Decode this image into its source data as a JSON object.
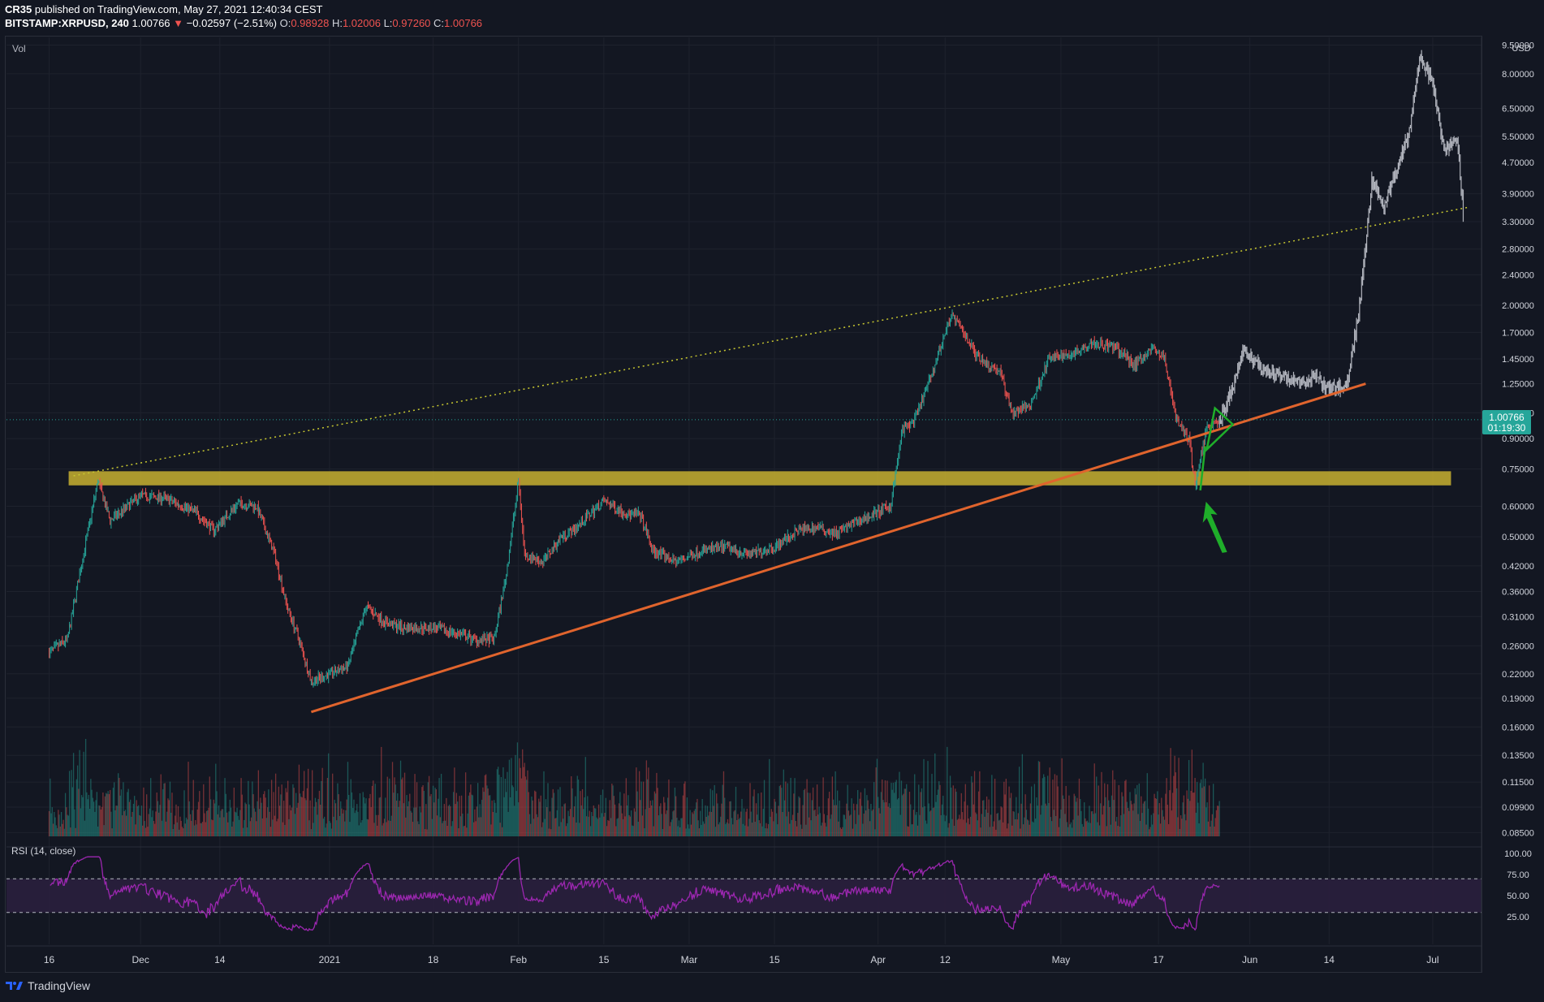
{
  "header": {
    "author": "CR35",
    "published_text": "published on TradingView.com, May 27, 2021 12:40:34 CEST",
    "symbol": "BITSTAMP:XRPUSD, 240",
    "last": "1.00766",
    "change_arrow": "▼",
    "change": "−0.02597 (−2.51%)",
    "o_label": "O:",
    "o_value": "0.98928",
    "h_label": "H:",
    "h_value": "1.02006",
    "l_label": "L:",
    "l_value": "0.97260",
    "c_label": "C:",
    "c_value": "1.00766"
  },
  "footer": {
    "brand": "TradingView"
  },
  "colors": {
    "background": "#131722",
    "up": "#26a69a",
    "down": "#ef5350",
    "projection": "#b2b5be",
    "support_zone": "#c8b030",
    "trendline": "#e0642d",
    "resistance_dotted": "#c8c830",
    "rsi_line": "#9c27b0",
    "rsi_band": "#2a1f3d",
    "price_badge": "#26a69a",
    "arrow": "#1fae2a"
  },
  "chart_data": {
    "type": "candlestick",
    "title": "BITSTAMP:XRPUSD, 240",
    "price_scale": "log",
    "currency_label": "USD",
    "volume_label": "Vol",
    "y_ticks": [
      "9.50000",
      "8.00000",
      "6.50000",
      "5.50000",
      "4.70000",
      "3.90000",
      "3.30000",
      "2.80000",
      "2.40000",
      "2.00000",
      "1.70000",
      "1.45000",
      "1.25000",
      "1.05000",
      "0.90000",
      "0.75000",
      "0.60000",
      "0.50000",
      "0.42000",
      "0.36000",
      "0.31000",
      "0.26000",
      "0.22000",
      "0.19000",
      "0.16000",
      "0.13500",
      "0.11500",
      "0.09900",
      "0.08500"
    ],
    "x_ticks": [
      "16",
      "Dec",
      "14",
      "2021",
      "18",
      "Feb",
      "15",
      "Mar",
      "15",
      "Apr",
      "12",
      "May",
      "17",
      "Jun",
      "14",
      "Jul"
    ],
    "current_price": "1.00766",
    "countdown": "01:19:30",
    "price_path": [
      [
        "2020-11-16",
        0.25
      ],
      [
        "2020-11-19",
        0.27
      ],
      [
        "2020-11-21",
        0.4
      ],
      [
        "2020-11-24",
        0.7
      ],
      [
        "2020-11-26",
        0.55
      ],
      [
        "2020-12-01",
        0.64
      ],
      [
        "2020-12-05",
        0.63
      ],
      [
        "2020-12-10",
        0.58
      ],
      [
        "2020-12-13",
        0.52
      ],
      [
        "2020-12-17",
        0.61
      ],
      [
        "2020-12-20",
        0.6
      ],
      [
        "2020-12-23",
        0.45
      ],
      [
        "2020-12-25",
        0.33
      ],
      [
        "2020-12-27",
        0.27
      ],
      [
        "2020-12-29",
        0.21
      ],
      [
        "2021-01-01",
        0.22
      ],
      [
        "2021-01-04",
        0.23
      ],
      [
        "2021-01-07",
        0.33
      ],
      [
        "2021-01-10",
        0.3
      ],
      [
        "2021-01-13",
        0.29
      ],
      [
        "2021-01-18",
        0.29
      ],
      [
        "2021-01-22",
        0.28
      ],
      [
        "2021-01-25",
        0.27
      ],
      [
        "2021-01-28",
        0.27
      ],
      [
        "2021-01-30",
        0.4
      ],
      [
        "2021-02-01",
        0.7
      ],
      [
        "2021-02-02",
        0.45
      ],
      [
        "2021-02-05",
        0.43
      ],
      [
        "2021-02-08",
        0.5
      ],
      [
        "2021-02-10",
        0.52
      ],
      [
        "2021-02-15",
        0.62
      ],
      [
        "2021-02-19",
        0.57
      ],
      [
        "2021-02-21",
        0.57
      ],
      [
        "2021-02-23",
        0.46
      ],
      [
        "2021-02-27",
        0.43
      ],
      [
        "2021-03-03",
        0.46
      ],
      [
        "2021-03-07",
        0.47
      ],
      [
        "2021-03-11",
        0.45
      ],
      [
        "2021-03-15",
        0.47
      ],
      [
        "2021-03-19",
        0.52
      ],
      [
        "2021-03-22",
        0.53
      ],
      [
        "2021-03-25",
        0.51
      ],
      [
        "2021-03-28",
        0.54
      ],
      [
        "2021-03-31",
        0.57
      ],
      [
        "2021-04-03",
        0.6
      ],
      [
        "2021-04-05",
        0.95
      ],
      [
        "2021-04-07",
        1.0
      ],
      [
        "2021-04-10",
        1.35
      ],
      [
        "2021-04-13",
        1.9
      ],
      [
        "2021-04-15",
        1.7
      ],
      [
        "2021-04-17",
        1.5
      ],
      [
        "2021-04-19",
        1.4
      ],
      [
        "2021-04-21",
        1.35
      ],
      [
        "2021-04-23",
        1.05
      ],
      [
        "2021-04-26",
        1.1
      ],
      [
        "2021-04-29",
        1.45
      ],
      [
        "2021-05-03",
        1.5
      ],
      [
        "2021-05-06",
        1.6
      ],
      [
        "2021-05-10",
        1.55
      ],
      [
        "2021-05-13",
        1.4
      ],
      [
        "2021-05-16",
        1.55
      ],
      [
        "2021-05-18",
        1.45
      ],
      [
        "2021-05-20",
        1.0
      ],
      [
        "2021-05-22",
        0.9
      ],
      [
        "2021-05-23",
        0.68
      ],
      [
        "2021-05-25",
        0.98
      ],
      [
        "2021-05-27",
        1.0
      ]
    ],
    "projection_path": [
      [
        "2021-05-27",
        1.0
      ],
      [
        "2021-05-29",
        1.2
      ],
      [
        "2021-05-31",
        1.55
      ],
      [
        "2021-06-03",
        1.35
      ],
      [
        "2021-06-07",
        1.3
      ],
      [
        "2021-06-10",
        1.25
      ],
      [
        "2021-06-12",
        1.3
      ],
      [
        "2021-06-14",
        1.2
      ],
      [
        "2021-06-17",
        1.25
      ],
      [
        "2021-06-19",
        2.0
      ],
      [
        "2021-06-21",
        4.2
      ],
      [
        "2021-06-23",
        3.6
      ],
      [
        "2021-06-25",
        4.5
      ],
      [
        "2021-06-27",
        5.5
      ],
      [
        "2021-06-29",
        8.8
      ],
      [
        "2021-07-01",
        7.5
      ],
      [
        "2021-07-03",
        5.0
      ],
      [
        "2021-07-05",
        5.4
      ],
      [
        "2021-07-06",
        3.5
      ]
    ],
    "annotations": {
      "support_zone": {
        "from": "2020-11-16",
        "to": "2021-07-04",
        "low": 0.68,
        "high": 0.74
      },
      "rising_trendline": {
        "x1": "2020-12-29",
        "y1": 0.175,
        "x2": "2021-06-20",
        "y2": 1.25
      },
      "dotted_resistance": {
        "x1": "2020-11-20",
        "y1": 0.72,
        "x2": "2021-07-07",
        "y2": 3.6
      }
    },
    "rsi": {
      "label": "RSI (14, close)",
      "ticks": [
        "100.00",
        "75.00",
        "50.00",
        "25.00"
      ],
      "upper": 70,
      "lower": 30,
      "range": [
        0,
        100
      ]
    }
  }
}
